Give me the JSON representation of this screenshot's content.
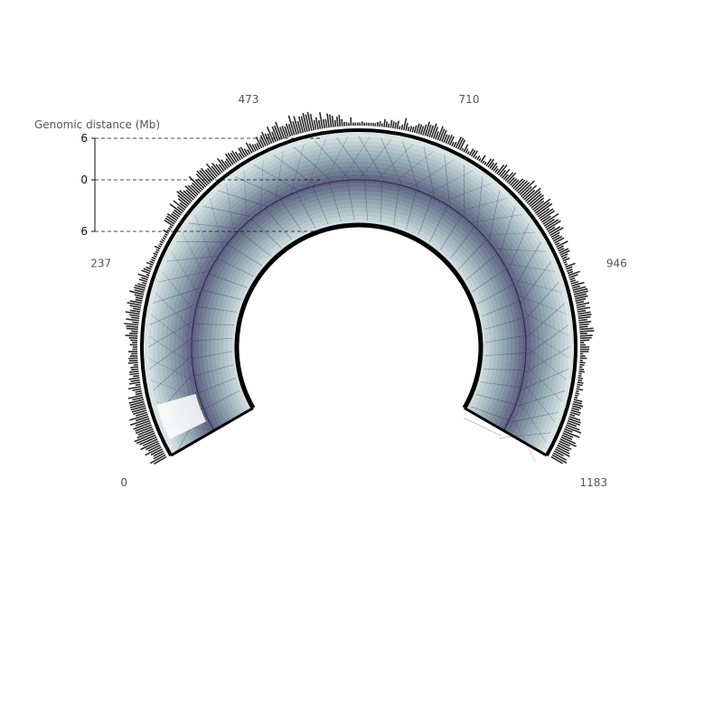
{
  "chart_data": {
    "type": "heatmap",
    "title": "",
    "genome_ticks": [
      "0",
      "237",
      "473",
      "710",
      "946",
      "1183"
    ],
    "genome_range": [
      0,
      1183
    ],
    "distance_axis": {
      "label": "Genomic distance (Mb)",
      "ticks": [
        "6",
        "0",
        "6"
      ],
      "range": [
        -6,
        6
      ]
    },
    "coverage_track": "outer histogram",
    "colors": {
      "heatmap_low": "#d9e6e6",
      "heatmap_mid": "#7f9aa6",
      "heatmap_high": "#2a2a55",
      "ring": "#000000",
      "histogram": "#2b2b2b"
    }
  }
}
